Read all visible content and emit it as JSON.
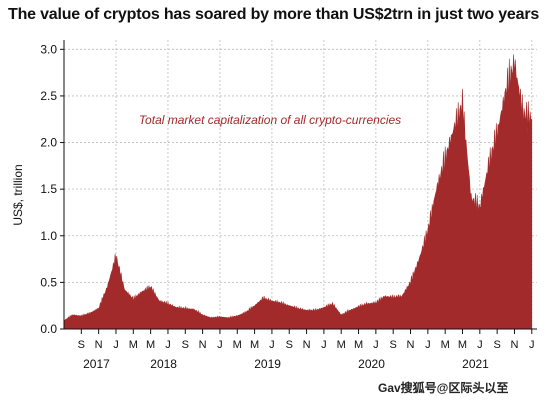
{
  "chart_data": {
    "type": "area",
    "title": "The value of cryptos has soared by more than US$2trn in just two years",
    "annotation": "Total market capitalization of all crypto-currencies",
    "ylabel": "US$, trillion",
    "xlabel": "",
    "ylim": [
      0,
      3.1
    ],
    "y_ticks": [
      "0.0",
      "0.5",
      "1.0",
      "1.5",
      "2.0",
      "2.5",
      "3.0"
    ],
    "x_month_ticks": [
      "S",
      "N",
      "J",
      "M",
      "M",
      "J",
      "S",
      "N",
      "J",
      "M",
      "M",
      "J",
      "S",
      "N",
      "J",
      "M",
      "M",
      "J",
      "S",
      "N",
      "J",
      "M",
      "M",
      "J",
      "S",
      "N",
      "J"
    ],
    "x_year_labels": [
      "2017",
      "2018",
      "2019",
      "2020",
      "2021"
    ],
    "grid": true,
    "series": [
      {
        "color": "#a22a2a",
        "x": [
          "2017-07",
          "2017-08",
          "2017-09",
          "2017-10",
          "2017-11",
          "2017-12",
          "2018-01",
          "2018-02",
          "2018-03",
          "2018-04",
          "2018-05",
          "2018-06",
          "2018-07",
          "2018-08",
          "2018-09",
          "2018-10",
          "2018-11",
          "2018-12",
          "2019-01",
          "2019-02",
          "2019-03",
          "2019-04",
          "2019-05",
          "2019-06",
          "2019-07",
          "2019-08",
          "2019-09",
          "2019-10",
          "2019-11",
          "2019-12",
          "2020-01",
          "2020-02",
          "2020-03",
          "2020-04",
          "2020-05",
          "2020-06",
          "2020-07",
          "2020-08",
          "2020-09",
          "2020-10",
          "2020-11",
          "2020-12",
          "2021-01",
          "2021-02",
          "2021-03",
          "2021-04",
          "2021-05",
          "2021-06",
          "2021-07",
          "2021-08",
          "2021-09",
          "2021-10",
          "2021-11",
          "2021-12",
          "2022-01"
        ],
        "values": [
          0.09,
          0.15,
          0.14,
          0.17,
          0.22,
          0.45,
          0.78,
          0.42,
          0.32,
          0.4,
          0.45,
          0.3,
          0.27,
          0.23,
          0.22,
          0.21,
          0.15,
          0.12,
          0.13,
          0.12,
          0.14,
          0.18,
          0.25,
          0.33,
          0.3,
          0.28,
          0.25,
          0.22,
          0.2,
          0.2,
          0.23,
          0.27,
          0.15,
          0.2,
          0.24,
          0.27,
          0.28,
          0.35,
          0.34,
          0.35,
          0.5,
          0.75,
          1.05,
          1.5,
          1.82,
          2.15,
          2.4,
          1.4,
          1.3,
          1.75,
          2.1,
          2.55,
          2.85,
          2.3,
          2.25
        ]
      }
    ]
  },
  "watermark": "Gav搜狐号@区际头以至"
}
